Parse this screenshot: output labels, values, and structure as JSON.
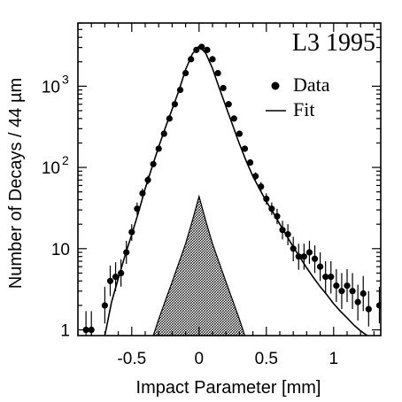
{
  "chart_data": {
    "type": "scatter",
    "title": "L3  1995",
    "xlabel": "Impact Parameter [mm]",
    "ylabel": "Number of Decays / 44 µm",
    "xlim": [
      -0.9,
      1.35
    ],
    "ylim": [
      0.85,
      6000
    ],
    "y_scale": "log",
    "grid": false,
    "legend_position": "top-right",
    "x_ticks": [
      -0.5,
      0,
      0.5,
      1
    ],
    "x_tick_labels": [
      "-0.5",
      "0",
      "0.5",
      "1"
    ],
    "y_tick_labels": [
      {
        "value": 1,
        "base": "1",
        "exp": ""
      },
      {
        "value": 10,
        "base": "10",
        "exp": ""
      },
      {
        "value": 100,
        "base": "10",
        "exp": "2"
      },
      {
        "value": 1000,
        "base": "10",
        "exp": "3"
      }
    ],
    "series": [
      {
        "name": "Data",
        "style": "points-with-errors",
        "color": "#000000",
        "points": [
          {
            "x": -0.84,
            "y": 1.0,
            "lo": 0.6,
            "hi": 1.7
          },
          {
            "x": -0.8,
            "y": 1.0,
            "lo": 0.6,
            "hi": 1.7
          },
          {
            "x": -0.7,
            "y": 2.0,
            "lo": 1.2,
            "hi": 3.4
          },
          {
            "x": -0.66,
            "y": 4.0,
            "lo": 2.6,
            "hi": 6.2
          },
          {
            "x": -0.62,
            "y": 4.5,
            "lo": 3.0,
            "hi": 6.8
          },
          {
            "x": -0.58,
            "y": 5.0,
            "lo": 3.4,
            "hi": 7.4
          },
          {
            "x": -0.54,
            "y": 9.0,
            "lo": 6.5,
            "hi": 12.5
          },
          {
            "x": -0.5,
            "y": 16,
            "lo": 12.5,
            "hi": 20
          },
          {
            "x": -0.46,
            "y": 31,
            "lo": 26,
            "hi": 37
          },
          {
            "x": -0.42,
            "y": 48,
            "lo": 41,
            "hi": 55
          },
          {
            "x": -0.38,
            "y": 70,
            "lo": 62,
            "hi": 79
          },
          {
            "x": -0.34,
            "y": 110
          },
          {
            "x": -0.3,
            "y": 170
          },
          {
            "x": -0.26,
            "y": 260
          },
          {
            "x": -0.22,
            "y": 400
          },
          {
            "x": -0.18,
            "y": 600
          },
          {
            "x": -0.14,
            "y": 900
          },
          {
            "x": -0.1,
            "y": 1450
          },
          {
            "x": -0.06,
            "y": 2150
          },
          {
            "x": -0.02,
            "y": 2800
          },
          {
            "x": 0.02,
            "y": 3050
          },
          {
            "x": 0.06,
            "y": 2800
          },
          {
            "x": 0.1,
            "y": 2150
          },
          {
            "x": 0.14,
            "y": 1450
          },
          {
            "x": 0.18,
            "y": 950
          },
          {
            "x": 0.22,
            "y": 600
          },
          {
            "x": 0.26,
            "y": 400
          },
          {
            "x": 0.3,
            "y": 260
          },
          {
            "x": 0.34,
            "y": 170
          },
          {
            "x": 0.38,
            "y": 115
          },
          {
            "x": 0.42,
            "y": 78,
            "lo": 70,
            "hi": 87
          },
          {
            "x": 0.46,
            "y": 58,
            "lo": 51,
            "hi": 66
          },
          {
            "x": 0.5,
            "y": 41,
            "lo": 35,
            "hi": 48
          },
          {
            "x": 0.54,
            "y": 31,
            "lo": 26,
            "hi": 37
          },
          {
            "x": 0.58,
            "y": 25,
            "lo": 20,
            "hi": 31
          },
          {
            "x": 0.62,
            "y": 17,
            "lo": 13,
            "hi": 22
          },
          {
            "x": 0.66,
            "y": 15,
            "lo": 11,
            "hi": 20
          },
          {
            "x": 0.7,
            "y": 10,
            "lo": 7,
            "hi": 14
          },
          {
            "x": 0.74,
            "y": 8,
            "lo": 5.5,
            "hi": 11.5
          },
          {
            "x": 0.78,
            "y": 8,
            "lo": 5.5,
            "hi": 11.5
          },
          {
            "x": 0.82,
            "y": 9,
            "lo": 6.5,
            "hi": 12.5
          },
          {
            "x": 0.86,
            "y": 7.5,
            "lo": 5,
            "hi": 11
          },
          {
            "x": 0.9,
            "y": 6,
            "lo": 4,
            "hi": 9
          },
          {
            "x": 0.94,
            "y": 4.5,
            "lo": 2.8,
            "hi": 7
          },
          {
            "x": 0.98,
            "y": 4.5,
            "lo": 2.8,
            "hi": 7
          },
          {
            "x": 1.02,
            "y": 3.5,
            "lo": 2.2,
            "hi": 5.6
          },
          {
            "x": 1.06,
            "y": 3.0,
            "lo": 1.8,
            "hi": 5.0
          },
          {
            "x": 1.1,
            "y": 3.5,
            "lo": 2.2,
            "hi": 5.6
          },
          {
            "x": 1.14,
            "y": 3.0,
            "lo": 1.8,
            "hi": 5.0
          },
          {
            "x": 1.18,
            "y": 2.2,
            "lo": 1.3,
            "hi": 3.6
          },
          {
            "x": 1.22,
            "y": 2.8,
            "lo": 1.7,
            "hi": 4.6
          },
          {
            "x": 1.26,
            "y": 1.8,
            "lo": 1.1,
            "hi": 3.0
          },
          {
            "x": 1.34,
            "y": 2.0,
            "lo": 1.2,
            "hi": 3.4
          }
        ]
      },
      {
        "name": "Fit",
        "style": "line",
        "color": "#000000",
        "x": [
          -0.7,
          -0.65,
          -0.6,
          -0.55,
          -0.5,
          -0.45,
          -0.4,
          -0.35,
          -0.3,
          -0.25,
          -0.2,
          -0.15,
          -0.1,
          -0.05,
          0.0,
          0.05,
          0.1,
          0.15,
          0.2,
          0.25,
          0.3,
          0.35,
          0.4,
          0.45,
          0.5,
          0.55,
          0.6,
          0.65,
          0.7,
          0.75,
          0.8,
          0.85,
          0.9,
          0.95,
          1.0,
          1.05,
          1.1,
          1.15,
          1.2,
          1.25
        ],
        "y": [
          0.85,
          2.2,
          4.3,
          8.2,
          15,
          28,
          55,
          100,
          180,
          310,
          520,
          880,
          1600,
          2500,
          3100,
          2550,
          1650,
          950,
          560,
          330,
          195,
          120,
          78,
          54,
          38,
          28,
          20,
          14.5,
          10.5,
          7.8,
          5.8,
          4.4,
          3.4,
          2.7,
          2.1,
          1.7,
          1.4,
          1.15,
          0.97,
          0.85
        ]
      },
      {
        "style": "hatched-area",
        "color": "#000000",
        "x": [
          -0.34,
          -0.3,
          -0.25,
          -0.2,
          -0.15,
          -0.1,
          -0.05,
          0.0,
          0.05,
          0.1,
          0.15,
          0.2,
          0.25,
          0.3,
          0.34
        ],
        "y": [
          0.85,
          1.35,
          2.3,
          3.9,
          6.7,
          11.5,
          22,
          44,
          22,
          11.5,
          6.7,
          3.9,
          2.3,
          1.35,
          0.85
        ]
      }
    ]
  }
}
